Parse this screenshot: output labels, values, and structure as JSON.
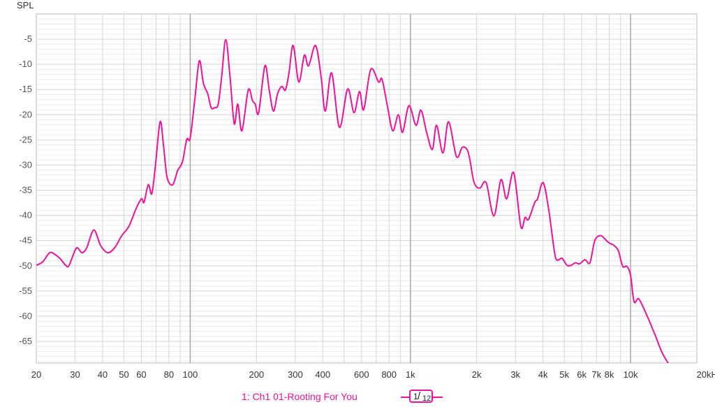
{
  "chart_data": {
    "type": "line",
    "ylabel": "SPL",
    "x_scale": "log",
    "xlim": [
      20,
      20000
    ],
    "ylim": [
      -69.3,
      0
    ],
    "grid": true,
    "x_ticks": [
      {
        "value": 20,
        "label": "20"
      },
      {
        "value": 30,
        "label": "30"
      },
      {
        "value": 40,
        "label": "40"
      },
      {
        "value": 50,
        "label": "50"
      },
      {
        "value": 60,
        "label": "60"
      },
      {
        "value": 80,
        "label": "80"
      },
      {
        "value": 100,
        "label": "100"
      },
      {
        "value": 200,
        "label": "200"
      },
      {
        "value": 300,
        "label": "300"
      },
      {
        "value": 400,
        "label": "400"
      },
      {
        "value": 600,
        "label": "600"
      },
      {
        "value": 800,
        "label": "800"
      },
      {
        "value": 1000,
        "label": "1k"
      },
      {
        "value": 2000,
        "label": "2k"
      },
      {
        "value": 3000,
        "label": "3k"
      },
      {
        "value": 4000,
        "label": "4k"
      },
      {
        "value": 5000,
        "label": "5k"
      },
      {
        "value": 6000,
        "label": "6k"
      },
      {
        "value": 7000,
        "label": "7k"
      },
      {
        "value": 8000,
        "label": "8k"
      },
      {
        "value": 10000,
        "label": "10k"
      },
      {
        "value": 20000,
        "label": "20kHz"
      }
    ],
    "y_ticks": [
      {
        "value": -5,
        "label": "-5"
      },
      {
        "value": -10,
        "label": "-10"
      },
      {
        "value": -15,
        "label": "-15"
      },
      {
        "value": -20,
        "label": "-20"
      },
      {
        "value": -25,
        "label": "-25"
      },
      {
        "value": -30,
        "label": "-30"
      },
      {
        "value": -35,
        "label": "-35"
      },
      {
        "value": -40,
        "label": "-40"
      },
      {
        "value": -45,
        "label": "-45"
      },
      {
        "value": -50,
        "label": "-50"
      },
      {
        "value": -55,
        "label": "-55"
      },
      {
        "value": -60,
        "label": "-60"
      },
      {
        "value": -65,
        "label": "-65"
      }
    ],
    "series": [
      {
        "name": "1: Ch1 01-Rooting For You",
        "color": "#f0109a",
        "points": [
          [
            20,
            -49.9
          ],
          [
            21.4,
            -49.2
          ],
          [
            23,
            -47.4
          ],
          [
            24.4,
            -47.8
          ],
          [
            25.8,
            -48.7
          ],
          [
            27.2,
            -49.9
          ],
          [
            28.2,
            -49.9
          ],
          [
            30.4,
            -46.5
          ],
          [
            32.2,
            -47.4
          ],
          [
            33.9,
            -46.4
          ],
          [
            36.5,
            -42.9
          ],
          [
            39.2,
            -46
          ],
          [
            42.2,
            -47.4
          ],
          [
            45.4,
            -46.4
          ],
          [
            48.9,
            -44
          ],
          [
            52.6,
            -42.2
          ],
          [
            56.6,
            -38.8
          ],
          [
            60,
            -36.7
          ],
          [
            61.7,
            -37.4
          ],
          [
            64.5,
            -33.9
          ],
          [
            66.9,
            -35.7
          ],
          [
            69.4,
            -30.4
          ],
          [
            73,
            -21.4
          ],
          [
            75.7,
            -26.3
          ],
          [
            78.6,
            -32.5
          ],
          [
            83.3,
            -33.9
          ],
          [
            87.7,
            -31.1
          ],
          [
            92.3,
            -29.3
          ],
          [
            96.4,
            -24.9
          ],
          [
            100,
            -24.6
          ],
          [
            105.2,
            -16.5
          ],
          [
            110,
            -9.3
          ],
          [
            114.9,
            -13.8
          ],
          [
            120,
            -15.8
          ],
          [
            124.5,
            -18.6
          ],
          [
            129,
            -18.6
          ],
          [
            134,
            -17.9
          ],
          [
            139,
            -12.4
          ],
          [
            145,
            -5.1
          ],
          [
            151.6,
            -12.4
          ],
          [
            158.5,
            -21.8
          ],
          [
            164.5,
            -17.9
          ],
          [
            171.8,
            -23.2
          ],
          [
            183.4,
            -15.1
          ],
          [
            191.8,
            -17.2
          ],
          [
            197.5,
            -17.9
          ],
          [
            204.6,
            -19.6
          ],
          [
            218.5,
            -10.3
          ],
          [
            228.5,
            -15.1
          ],
          [
            238.8,
            -19.3
          ],
          [
            249.5,
            -15.8
          ],
          [
            260.8,
            -14.4
          ],
          [
            270.8,
            -15.1
          ],
          [
            280.9,
            -11.7
          ],
          [
            293.6,
            -6.25
          ],
          [
            311.3,
            -13.5
          ],
          [
            330,
            -8.2
          ],
          [
            344.8,
            -10.3
          ],
          [
            370.8,
            -6.25
          ],
          [
            393,
            -12.4
          ],
          [
            410.8,
            -19.3
          ],
          [
            438.8,
            -11.7
          ],
          [
            476,
            -22.5
          ],
          [
            518.8,
            -14.9
          ],
          [
            554.6,
            -19.6
          ],
          [
            587.5,
            -15.4
          ],
          [
            614,
            -19
          ],
          [
            660.7,
            -11
          ],
          [
            717,
            -13.5
          ],
          [
            744,
            -13
          ],
          [
            789,
            -18.6
          ],
          [
            832,
            -23.2
          ],
          [
            882,
            -20
          ],
          [
            922,
            -23.5
          ],
          [
            985,
            -18.2
          ],
          [
            1060,
            -22.1
          ],
          [
            1117,
            -19.1
          ],
          [
            1185,
            -23.5
          ],
          [
            1258,
            -26.9
          ],
          [
            1315,
            -22.1
          ],
          [
            1406,
            -27.6
          ],
          [
            1491,
            -21.4
          ],
          [
            1619,
            -28.3
          ],
          [
            1718,
            -26.5
          ],
          [
            1809,
            -26.9
          ],
          [
            1864,
            -29
          ],
          [
            1948,
            -33.5
          ],
          [
            2067,
            -34.6
          ],
          [
            2209,
            -33.5
          ],
          [
            2395,
            -40.1
          ],
          [
            2578,
            -32.9
          ],
          [
            2737,
            -36.7
          ],
          [
            2945,
            -31.5
          ],
          [
            3173,
            -42.2
          ],
          [
            3316,
            -40.4
          ],
          [
            3439,
            -40.8
          ],
          [
            3672,
            -37.4
          ],
          [
            3781,
            -36.7
          ],
          [
            4008,
            -33.5
          ],
          [
            4248,
            -38.8
          ],
          [
            4534,
            -47.8
          ],
          [
            4706,
            -48.8
          ],
          [
            4884,
            -48.5
          ],
          [
            5141,
            -49.9
          ],
          [
            5371,
            -49.9
          ],
          [
            5612,
            -49.4
          ],
          [
            5864,
            -49.6
          ],
          [
            6215,
            -48.8
          ],
          [
            6538,
            -49.4
          ],
          [
            6877,
            -45
          ],
          [
            7290,
            -44
          ],
          [
            7617,
            -44.6
          ],
          [
            7959,
            -45.4
          ],
          [
            8436,
            -46
          ],
          [
            8814,
            -47.1
          ],
          [
            9210,
            -50.1
          ],
          [
            9624,
            -50.1
          ],
          [
            10000,
            -51.9
          ],
          [
            10370,
            -57.1
          ],
          [
            10840,
            -56.5
          ],
          [
            11320,
            -57.9
          ],
          [
            12180,
            -61
          ],
          [
            13100,
            -64.4
          ],
          [
            13890,
            -67.2
          ],
          [
            14940,
            -69.6
          ]
        ]
      }
    ]
  },
  "legend": {
    "label": "1: Ch1 01-Rooting For You"
  },
  "smoothing": {
    "numerator": "1",
    "denominator": "12"
  }
}
